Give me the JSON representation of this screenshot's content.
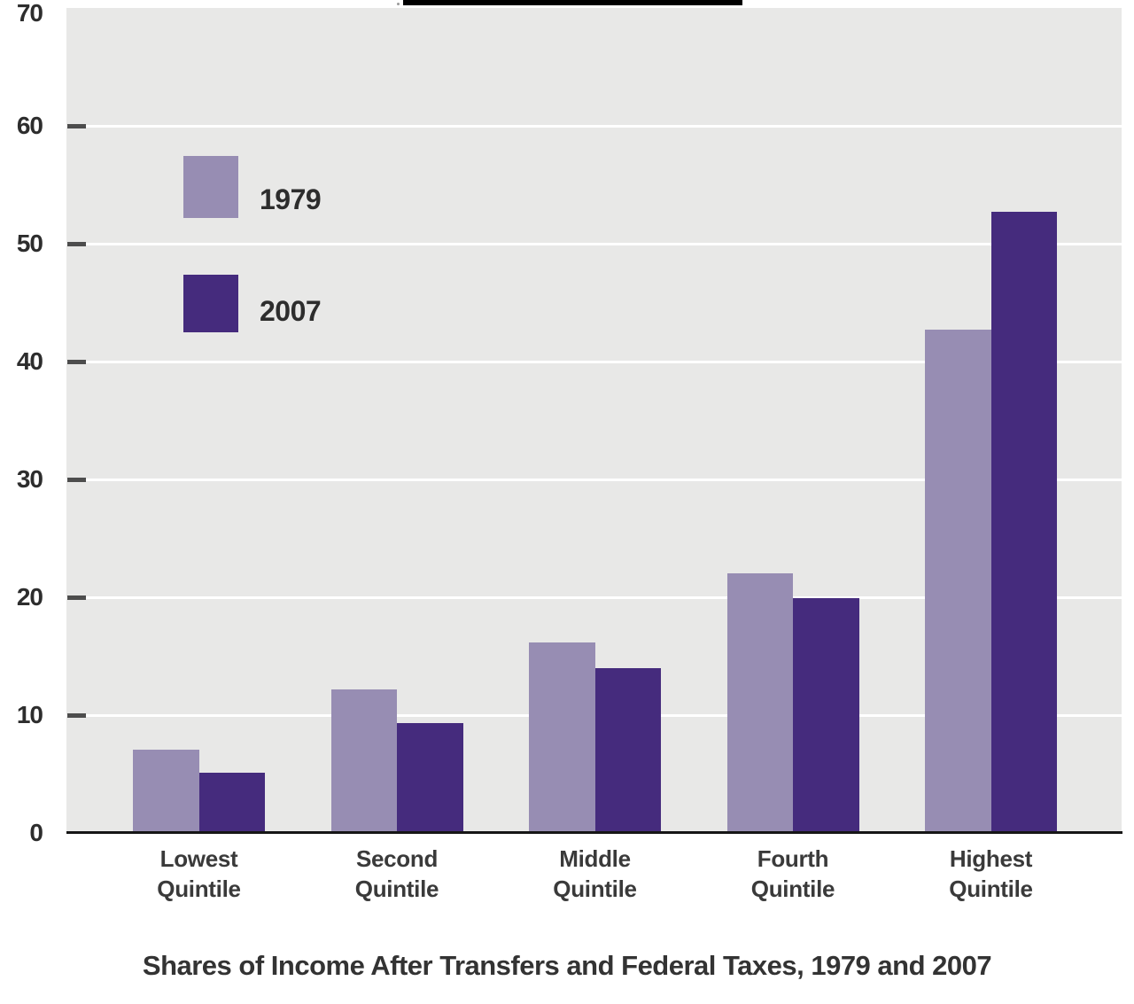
{
  "colors": {
    "top_bar": "#000000",
    "plot_background": "#e8e8e7",
    "gridline": "#ffffff",
    "axis_line": "#161616",
    "tick_mark": "#4d4d4d",
    "label_text": "#2d2d2d",
    "series_1979": "#978db3",
    "series_2007": "#452b7d"
  },
  "chart_data": {
    "type": "bar",
    "title": "Shares of Income After Transfers and Federal Taxes, 1979 and 2007",
    "categories": [
      "Lowest Quintile",
      "Second Quintile",
      "Middle Quintile",
      "Fourth Quintile",
      "Highest Quintile"
    ],
    "series": [
      {
        "name": "1979",
        "color": "#978db3",
        "values": [
          7.1,
          12.2,
          16.2,
          22.0,
          42.7
        ]
      },
      {
        "name": "2007",
        "color": "#452b7d",
        "values": [
          5.1,
          9.3,
          14.0,
          19.9,
          52.7
        ]
      }
    ],
    "xlabel": "",
    "ylabel": "",
    "ylim": [
      0,
      70
    ],
    "yticks": [
      0,
      10,
      20,
      30,
      40,
      50,
      60,
      70
    ],
    "grid": "horizontal",
    "legend_position": "upper-left",
    "units": "percent"
  }
}
